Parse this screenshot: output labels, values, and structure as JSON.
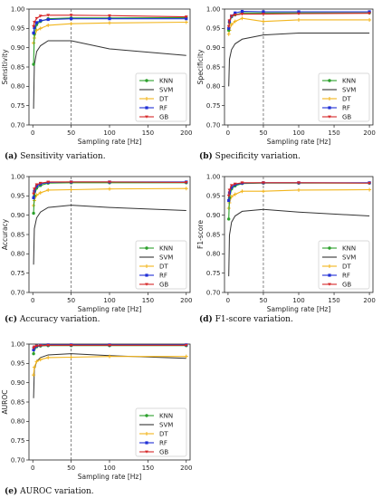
{
  "series_styles": [
    {
      "name": "KNN",
      "color": "#2ca02c",
      "marker": "circle"
    },
    {
      "name": "SVM",
      "color": "#333333",
      "marker": "none"
    },
    {
      "name": "DT",
      "color": "#f2b51c",
      "marker": "plus"
    },
    {
      "name": "RF",
      "color": "#1f2fd6",
      "marker": "square"
    },
    {
      "name": "GB",
      "color": "#d62728",
      "marker": "tri"
    }
  ],
  "chart_data": [
    {
      "type": "line",
      "panel": "a",
      "caption_label": "(a)",
      "caption_text": "Sensitivity variation.",
      "ylabel": "Sensitivity",
      "xlabel": "Sampling rate [Hz]",
      "xlim": [
        -5,
        205
      ],
      "ylim": [
        0.7,
        1.0
      ],
      "xticks": [
        0,
        50,
        100,
        150,
        200
      ],
      "yticks": [
        0.7,
        0.75,
        0.8,
        0.85,
        0.9,
        0.95,
        1.0
      ],
      "ytick_labels": [
        "0.70",
        "0.75",
        "0.80",
        "0.85",
        "0.90",
        "0.95",
        "1.00"
      ],
      "vline_x": 50,
      "x": [
        1,
        2,
        5,
        10,
        20,
        50,
        100,
        200
      ],
      "series": [
        {
          "name": "KNN",
          "values": [
            0.857,
            0.935,
            0.96,
            0.968,
            0.975,
            0.977,
            0.977,
            0.978
          ]
        },
        {
          "name": "SVM",
          "values": [
            0.742,
            0.855,
            0.89,
            0.905,
            0.918,
            0.918,
            0.897,
            0.88
          ]
        },
        {
          "name": "DT",
          "values": [
            0.912,
            0.925,
            0.945,
            0.95,
            0.958,
            0.962,
            0.964,
            0.966
          ]
        },
        {
          "name": "RF",
          "values": [
            0.938,
            0.952,
            0.965,
            0.97,
            0.973,
            0.975,
            0.975,
            0.975
          ]
        },
        {
          "name": "GB",
          "values": [
            0.955,
            0.966,
            0.976,
            0.982,
            0.984,
            0.984,
            0.983,
            0.98
          ]
        }
      ],
      "legend": "lower-right",
      "grid": false
    },
    {
      "type": "line",
      "panel": "b",
      "caption_label": "(b)",
      "caption_text": "Specificity variation.",
      "ylabel": "Specificity",
      "xlabel": "Sampling rate [Hz]",
      "xlim": [
        -5,
        205
      ],
      "ylim": [
        0.7,
        1.0
      ],
      "xticks": [
        0,
        50,
        100,
        150,
        200
      ],
      "yticks": [
        0.7,
        0.75,
        0.8,
        0.85,
        0.9,
        0.95,
        1.0
      ],
      "ytick_labels": [
        "0.70",
        "0.75",
        "0.80",
        "0.85",
        "0.90",
        "0.95",
        "1.00"
      ],
      "vline_x": 50,
      "x": [
        1,
        2,
        5,
        10,
        20,
        50,
        100,
        200
      ],
      "series": [
        {
          "name": "KNN",
          "values": [
            0.945,
            0.965,
            0.98,
            0.985,
            0.99,
            0.99,
            0.99,
            0.99
          ]
        },
        {
          "name": "SVM",
          "values": [
            0.8,
            0.87,
            0.895,
            0.91,
            0.922,
            0.933,
            0.938,
            0.938
          ]
        },
        {
          "name": "DT",
          "values": [
            0.935,
            0.945,
            0.96,
            0.968,
            0.976,
            0.968,
            0.972,
            0.972
          ]
        },
        {
          "name": "RF",
          "values": [
            0.95,
            0.968,
            0.982,
            0.99,
            0.994,
            0.993,
            0.993,
            0.993
          ]
        },
        {
          "name": "GB",
          "values": [
            0.955,
            0.97,
            0.982,
            0.985,
            0.987,
            0.987,
            0.988,
            0.989
          ]
        }
      ],
      "legend": "lower-right",
      "grid": false
    },
    {
      "type": "line",
      "panel": "c",
      "caption_label": "(c)",
      "caption_text": "Accuracy variation.",
      "ylabel": "Accuracy",
      "xlabel": "Sampling rate [Hz]",
      "xlim": [
        -5,
        205
      ],
      "ylim": [
        0.7,
        1.0
      ],
      "xticks": [
        0,
        50,
        100,
        150,
        200
      ],
      "yticks": [
        0.7,
        0.75,
        0.8,
        0.85,
        0.9,
        0.95,
        1.0
      ],
      "ytick_labels": [
        "0.70",
        "0.75",
        "0.80",
        "0.85",
        "0.90",
        "0.95",
        "1.00"
      ],
      "vline_x": 50,
      "x": [
        1,
        2,
        5,
        10,
        20,
        50,
        100,
        200
      ],
      "series": [
        {
          "name": "KNN",
          "values": [
            0.905,
            0.95,
            0.97,
            0.977,
            0.983,
            0.984,
            0.984,
            0.984
          ]
        },
        {
          "name": "SVM",
          "values": [
            0.772,
            0.865,
            0.893,
            0.908,
            0.92,
            0.926,
            0.92,
            0.912
          ]
        },
        {
          "name": "DT",
          "values": [
            0.925,
            0.938,
            0.952,
            0.958,
            0.965,
            0.966,
            0.968,
            0.969
          ]
        },
        {
          "name": "RF",
          "values": [
            0.945,
            0.962,
            0.975,
            0.981,
            0.985,
            0.986,
            0.986,
            0.986
          ]
        },
        {
          "name": "GB",
          "values": [
            0.955,
            0.968,
            0.979,
            0.983,
            0.986,
            0.986,
            0.986,
            0.985
          ]
        }
      ],
      "legend": "lower-right",
      "grid": false
    },
    {
      "type": "line",
      "panel": "d",
      "caption_label": "(d)",
      "caption_text": "F1-score variation.",
      "ylabel": "F1-score",
      "xlabel": "Sampling rate [Hz]",
      "xlim": [
        -5,
        205
      ],
      "ylim": [
        0.7,
        1.0
      ],
      "xticks": [
        0,
        50,
        100,
        150,
        200
      ],
      "yticks": [
        0.7,
        0.75,
        0.8,
        0.85,
        0.9,
        0.95,
        1.0
      ],
      "ytick_labels": [
        "0.70",
        "0.75",
        "0.80",
        "0.85",
        "0.90",
        "0.95",
        "1.00"
      ],
      "vline_x": 50,
      "x": [
        1,
        2,
        5,
        10,
        20,
        50,
        100,
        200
      ],
      "series": [
        {
          "name": "KNN",
          "values": [
            0.89,
            0.945,
            0.968,
            0.976,
            0.982,
            0.983,
            0.983,
            0.983
          ]
        },
        {
          "name": "SVM",
          "values": [
            0.742,
            0.848,
            0.882,
            0.898,
            0.91,
            0.915,
            0.908,
            0.898
          ]
        },
        {
          "name": "DT",
          "values": [
            0.918,
            0.932,
            0.948,
            0.954,
            0.962,
            0.962,
            0.965,
            0.966
          ]
        },
        {
          "name": "RF",
          "values": [
            0.938,
            0.958,
            0.972,
            0.979,
            0.983,
            0.984,
            0.984,
            0.984
          ]
        },
        {
          "name": "GB",
          "values": [
            0.95,
            0.965,
            0.977,
            0.981,
            0.984,
            0.984,
            0.984,
            0.983
          ]
        }
      ],
      "legend": "lower-right",
      "grid": false
    },
    {
      "type": "line",
      "panel": "e",
      "caption_label": "(e)",
      "caption_text": "AUROC variation.",
      "ylabel": "AUROC",
      "xlabel": "Sampling rate [Hz]",
      "xlim": [
        -5,
        205
      ],
      "ylim": [
        0.7,
        1.0
      ],
      "xticks": [
        0,
        50,
        100,
        150,
        200
      ],
      "yticks": [
        0.7,
        0.75,
        0.8,
        0.85,
        0.9,
        0.95,
        1.0
      ],
      "ytick_labels": [
        "0.70",
        "0.75",
        "0.80",
        "0.85",
        "0.90",
        "0.95",
        "1.00"
      ],
      "vline_x": 50,
      "x": [
        1,
        2,
        5,
        10,
        20,
        50,
        100,
        200
      ],
      "series": [
        {
          "name": "KNN",
          "values": [
            0.975,
            0.988,
            0.993,
            0.995,
            0.996,
            0.996,
            0.996,
            0.996
          ]
        },
        {
          "name": "SVM",
          "values": [
            0.86,
            0.935,
            0.955,
            0.965,
            0.972,
            0.975,
            0.97,
            0.963
          ]
        },
        {
          "name": "DT",
          "values": [
            0.92,
            0.94,
            0.955,
            0.96,
            0.965,
            0.966,
            0.968,
            0.968
          ]
        },
        {
          "name": "RF",
          "values": [
            0.985,
            0.992,
            0.995,
            0.997,
            0.998,
            0.998,
            0.998,
            0.998
          ]
        },
        {
          "name": "GB",
          "values": [
            0.99,
            0.993,
            0.995,
            0.996,
            0.997,
            0.997,
            0.997,
            0.997
          ]
        }
      ],
      "legend": "lower-right",
      "grid": false
    }
  ]
}
